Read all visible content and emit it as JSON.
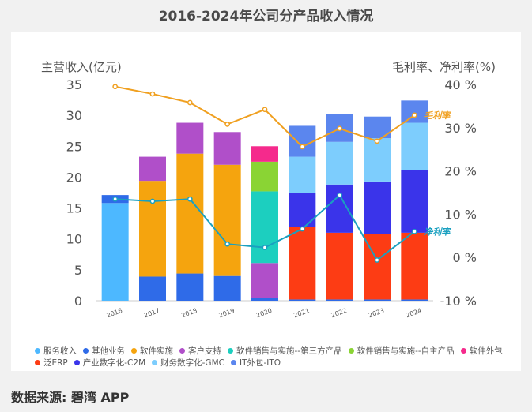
{
  "title": "2016-2024年公司分产品收入情况",
  "source": "数据来源: 碧湾 APP",
  "chart_data": {
    "type": "bar",
    "stacked": true,
    "categories": [
      "2016",
      "2017",
      "2018",
      "2019",
      "2020",
      "2021",
      "2022",
      "2023",
      "2024"
    ],
    "ylabel_left": "主营收入(亿元)",
    "ylabel_right": "毛利率、净利率(%)",
    "ylim_left": [
      0,
      35
    ],
    "ylim_right": [
      -10,
      40
    ],
    "yticks_left": [
      "0",
      "5",
      "10",
      "15",
      "20",
      "25",
      "30",
      "35"
    ],
    "yticks_right": [
      "-10 %",
      "0 %",
      "10 %",
      "20 %",
      "30 %",
      "40 %"
    ],
    "grid": false,
    "legend_position": "bottom",
    "series": [
      {
        "name": "服务收入",
        "color": "#4db8ff",
        "values": [
          15.8,
          0,
          0,
          0,
          0,
          0,
          0,
          0,
          0
        ]
      },
      {
        "name": "其他业务",
        "color": "#2f6be8",
        "values": [
          1.3,
          3.9,
          4.4,
          4.0,
          0.5,
          0.2,
          0.2,
          0.2,
          0.2
        ]
      },
      {
        "name": "软件实施",
        "color": "#f5a40e",
        "values": [
          0,
          15.5,
          19.4,
          18.0,
          0,
          0,
          0,
          0,
          0
        ]
      },
      {
        "name": "客户支持",
        "color": "#b04fc9",
        "values": [
          0,
          3.9,
          5.0,
          5.3,
          5.6,
          0,
          0,
          0,
          0
        ]
      },
      {
        "name": "软件销售与实施--第三方产品",
        "color": "#1ccfbf",
        "values": [
          0,
          0,
          0,
          0,
          11.6,
          0,
          0,
          0,
          0
        ]
      },
      {
        "name": "软件销售与实施--自主产品",
        "color": "#8ad434",
        "values": [
          0,
          0,
          0,
          0,
          4.8,
          0,
          0,
          0,
          0
        ]
      },
      {
        "name": "软件外包",
        "color": "#f52a8c",
        "values": [
          0,
          0,
          0,
          0,
          2.5,
          0,
          0,
          0,
          0
        ]
      },
      {
        "name": "泛ERP",
        "color": "#fd3c14",
        "values": [
          0,
          0,
          0,
          0,
          0,
          11.7,
          10.8,
          10.6,
          10.8
        ]
      },
      {
        "name": "产业数字化-C2M",
        "color": "#3a34ea",
        "values": [
          0,
          0,
          0,
          0,
          0,
          5.6,
          7.8,
          8.5,
          10.2
        ]
      },
      {
        "name": "财务数字化-GMC",
        "color": "#7dcdfd",
        "values": [
          0,
          0,
          0,
          0,
          0,
          5.8,
          6.9,
          7.0,
          7.6
        ]
      },
      {
        "name": "IT外包-ITO",
        "color": "#5b86ee",
        "values": [
          0,
          0,
          0,
          0,
          0,
          5.0,
          4.5,
          3.5,
          3.6
        ]
      }
    ],
    "lines": [
      {
        "name": "毛利率",
        "label": "毛利率",
        "color": "#f0a020",
        "values": [
          39.5,
          37.8,
          35.8,
          30.8,
          34.2,
          25.6,
          29.8,
          26.9,
          32.9
        ]
      },
      {
        "name": "净利率",
        "label": "净利率",
        "color": "#1aa0c0",
        "values": [
          13.5,
          13.0,
          13.5,
          3.1,
          2.3,
          6.6,
          14.4,
          -0.6,
          6.0
        ]
      }
    ]
  }
}
